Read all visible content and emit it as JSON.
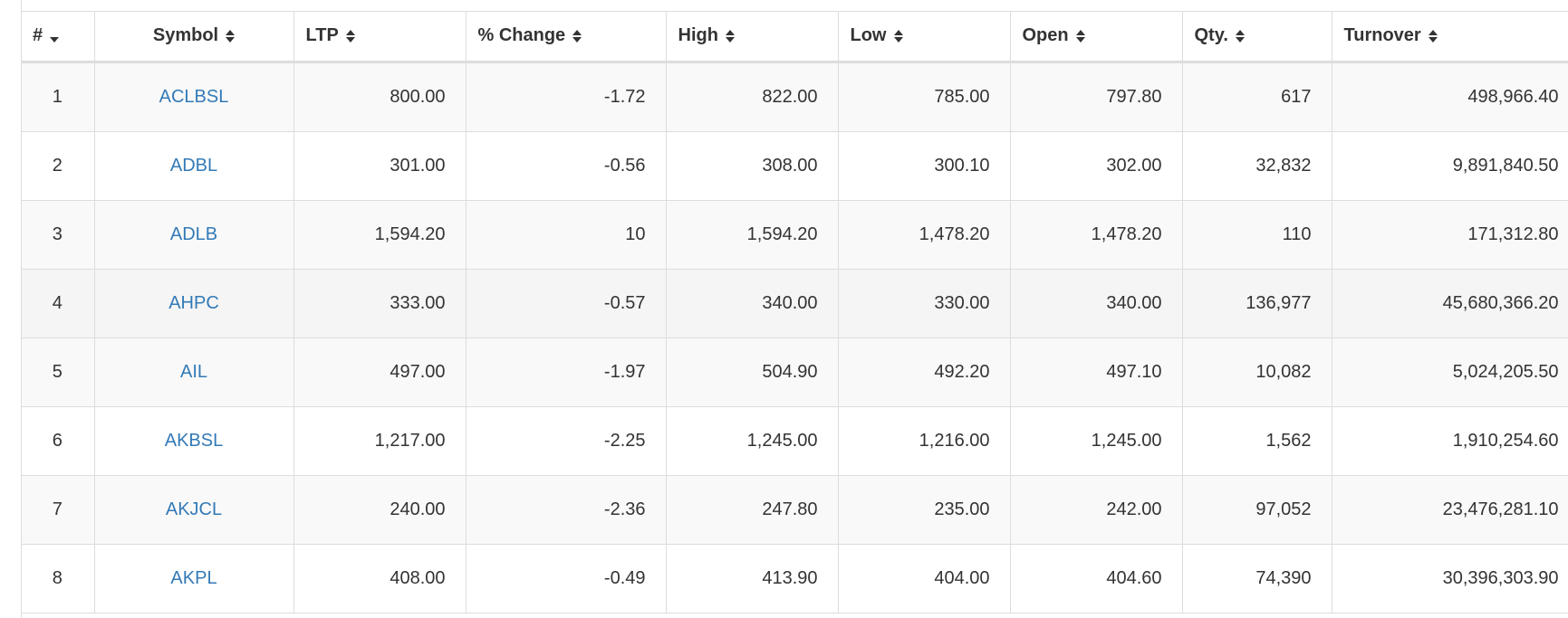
{
  "table": {
    "headers": {
      "index": "#",
      "symbol": "Symbol",
      "ltp": "LTP",
      "pct_change": "% Change",
      "high": "High",
      "low": "Low",
      "open": "Open",
      "qty": "Qty.",
      "turnover": "Turnover"
    },
    "rows": [
      {
        "index": "1",
        "symbol": "ACLBSL",
        "ltp": "800.00",
        "pct_change": "-1.72",
        "high": "822.00",
        "low": "785.00",
        "open": "797.80",
        "qty": "617",
        "turnover": "498,966.40"
      },
      {
        "index": "2",
        "symbol": "ADBL",
        "ltp": "301.00",
        "pct_change": "-0.56",
        "high": "308.00",
        "low": "300.10",
        "open": "302.00",
        "qty": "32,832",
        "turnover": "9,891,840.50"
      },
      {
        "index": "3",
        "symbol": "ADLB",
        "ltp": "1,594.20",
        "pct_change": "10",
        "high": "1,594.20",
        "low": "1,478.20",
        "open": "1,478.20",
        "qty": "110",
        "turnover": "171,312.80"
      },
      {
        "index": "4",
        "symbol": "AHPC",
        "ltp": "333.00",
        "pct_change": "-0.57",
        "high": "340.00",
        "low": "330.00",
        "open": "340.00",
        "qty": "136,977",
        "turnover": "45,680,366.20"
      },
      {
        "index": "5",
        "symbol": "AIL",
        "ltp": "497.00",
        "pct_change": "-1.97",
        "high": "504.90",
        "low": "492.20",
        "open": "497.10",
        "qty": "10,082",
        "turnover": "5,024,205.50"
      },
      {
        "index": "6",
        "symbol": "AKBSL",
        "ltp": "1,217.00",
        "pct_change": "-2.25",
        "high": "1,245.00",
        "low": "1,216.00",
        "open": "1,245.00",
        "qty": "1,562",
        "turnover": "1,910,254.60"
      },
      {
        "index": "7",
        "symbol": "AKJCL",
        "ltp": "240.00",
        "pct_change": "-2.36",
        "high": "247.80",
        "low": "235.00",
        "open": "242.00",
        "qty": "97,052",
        "turnover": "23,476,281.10"
      },
      {
        "index": "8",
        "symbol": "AKPL",
        "ltp": "408.00",
        "pct_change": "-0.49",
        "high": "413.90",
        "low": "404.00",
        "open": "404.60",
        "qty": "74,390",
        "turnover": "30,396,303.90"
      }
    ]
  },
  "colors": {
    "link": "#337ab7",
    "text": "#333333",
    "border": "#dddddd",
    "stripe": "#f9f9f9",
    "hover_row": "#f5f5f5"
  },
  "icons": {
    "sort_desc": "sort-desc-icon",
    "sort_both": "sort-both-icon"
  }
}
